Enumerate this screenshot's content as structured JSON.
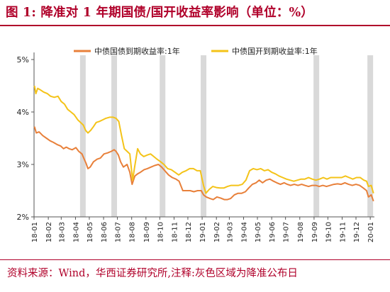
{
  "header": {
    "title": "图 1:  降准对 1 年期国债/国开收益率影响（单位：%）"
  },
  "footer": {
    "source": "资料来源：Wind，华西证券研究所,注释:灰色区域为降准公布日"
  },
  "chart_data": {
    "type": "line",
    "title": "",
    "xlabel": "",
    "ylabel": "",
    "ylim": [
      2,
      5
    ],
    "yticks": [
      "2%",
      "3%",
      "4%",
      "5%"
    ],
    "grid": false,
    "legend_position": "top-center",
    "colors": {
      "series1": "#e8803a",
      "series2": "#f4c318",
      "shade": "#d9d9d9"
    },
    "x_tick_labels": [
      "18-01",
      "18-02",
      "18-03",
      "18-04",
      "18-05",
      "18-06",
      "18-07",
      "18-08",
      "18-09",
      "18-10",
      "18-11",
      "18-12",
      "19-01",
      "19-02",
      "19-03",
      "19-04",
      "19-05",
      "19-06",
      "19-07",
      "19-08",
      "19-09",
      "19-10",
      "19-11",
      "19-12",
      "20-01"
    ],
    "shaded_dates": [
      "2018-04-17",
      "2018-06-24",
      "2018-10-07",
      "2019-01-04",
      "2019-09-06",
      "2020-01-01"
    ],
    "series": [
      {
        "name": "中债国债到期收益率:1年",
        "color": "#e8803a",
        "points": [
          [
            "2018-01-02",
            3.72
          ],
          [
            "2018-01-06",
            3.6
          ],
          [
            "2018-01-12",
            3.62
          ],
          [
            "2018-01-20",
            3.55
          ],
          [
            "2018-01-28",
            3.5
          ],
          [
            "2018-02-05",
            3.45
          ],
          [
            "2018-02-12",
            3.42
          ],
          [
            "2018-02-20",
            3.38
          ],
          [
            "2018-02-28",
            3.35
          ],
          [
            "2018-03-06",
            3.3
          ],
          [
            "2018-03-12",
            3.33
          ],
          [
            "2018-03-18",
            3.3
          ],
          [
            "2018-03-25",
            3.28
          ],
          [
            "2018-04-02",
            3.32
          ],
          [
            "2018-04-08",
            3.25
          ],
          [
            "2018-04-15",
            3.2
          ],
          [
            "2018-04-20",
            3.1
          ],
          [
            "2018-04-24",
            3.02
          ],
          [
            "2018-04-28",
            2.92
          ],
          [
            "2018-05-03",
            2.95
          ],
          [
            "2018-05-10",
            3.05
          ],
          [
            "2018-05-18",
            3.1
          ],
          [
            "2018-05-25",
            3.12
          ],
          [
            "2018-06-02",
            3.2
          ],
          [
            "2018-06-10",
            3.22
          ],
          [
            "2018-06-18",
            3.25
          ],
          [
            "2018-06-24",
            3.28
          ],
          [
            "2018-06-28",
            3.25
          ],
          [
            "2018-07-03",
            3.18
          ],
          [
            "2018-07-08",
            3.05
          ],
          [
            "2018-07-14",
            2.95
          ],
          [
            "2018-07-22",
            3.0
          ],
          [
            "2018-07-28",
            2.85
          ],
          [
            "2018-08-02",
            2.62
          ],
          [
            "2018-08-08",
            2.78
          ],
          [
            "2018-08-14",
            2.82
          ],
          [
            "2018-08-20",
            2.85
          ],
          [
            "2018-08-28",
            2.9
          ],
          [
            "2018-09-04",
            2.92
          ],
          [
            "2018-09-12",
            2.95
          ],
          [
            "2018-09-20",
            2.98
          ],
          [
            "2018-09-28",
            3.0
          ],
          [
            "2018-10-05",
            2.95
          ],
          [
            "2018-10-12",
            2.88
          ],
          [
            "2018-10-20",
            2.8
          ],
          [
            "2018-10-28",
            2.75
          ],
          [
            "2018-11-05",
            2.72
          ],
          [
            "2018-11-12",
            2.68
          ],
          [
            "2018-11-20",
            2.5
          ],
          [
            "2018-11-28",
            2.5
          ],
          [
            "2018-12-06",
            2.5
          ],
          [
            "2018-12-14",
            2.48
          ],
          [
            "2018-12-22",
            2.5
          ],
          [
            "2018-12-30",
            2.5
          ],
          [
            "2019-01-04",
            2.42
          ],
          [
            "2019-01-10",
            2.38
          ],
          [
            "2019-01-18",
            2.35
          ],
          [
            "2019-01-25",
            2.33
          ],
          [
            "2019-02-02",
            2.38
          ],
          [
            "2019-02-10",
            2.36
          ],
          [
            "2019-02-18",
            2.33
          ],
          [
            "2019-02-25",
            2.33
          ],
          [
            "2019-03-04",
            2.35
          ],
          [
            "2019-03-12",
            2.42
          ],
          [
            "2019-03-20",
            2.45
          ],
          [
            "2019-03-28",
            2.45
          ],
          [
            "2019-04-05",
            2.48
          ],
          [
            "2019-04-12",
            2.55
          ],
          [
            "2019-04-20",
            2.62
          ],
          [
            "2019-04-28",
            2.65
          ],
          [
            "2019-05-05",
            2.7
          ],
          [
            "2019-05-12",
            2.65
          ],
          [
            "2019-05-20",
            2.7
          ],
          [
            "2019-05-28",
            2.72
          ],
          [
            "2019-06-05",
            2.68
          ],
          [
            "2019-06-12",
            2.65
          ],
          [
            "2019-06-20",
            2.62
          ],
          [
            "2019-06-28",
            2.65
          ],
          [
            "2019-07-05",
            2.62
          ],
          [
            "2019-07-12",
            2.6
          ],
          [
            "2019-07-20",
            2.62
          ],
          [
            "2019-07-28",
            2.6
          ],
          [
            "2019-08-05",
            2.62
          ],
          [
            "2019-08-12",
            2.6
          ],
          [
            "2019-08-20",
            2.58
          ],
          [
            "2019-08-28",
            2.6
          ],
          [
            "2019-09-05",
            2.6
          ],
          [
            "2019-09-12",
            2.58
          ],
          [
            "2019-09-20",
            2.6
          ],
          [
            "2019-09-28",
            2.58
          ],
          [
            "2019-10-06",
            2.6
          ],
          [
            "2019-10-14",
            2.62
          ],
          [
            "2019-10-22",
            2.63
          ],
          [
            "2019-10-30",
            2.62
          ],
          [
            "2019-11-07",
            2.65
          ],
          [
            "2019-11-15",
            2.62
          ],
          [
            "2019-11-23",
            2.6
          ],
          [
            "2019-12-01",
            2.62
          ],
          [
            "2019-12-09",
            2.6
          ],
          [
            "2019-12-17",
            2.55
          ],
          [
            "2019-12-24",
            2.5
          ],
          [
            "2019-12-28",
            2.38
          ],
          [
            "2020-01-03",
            2.42
          ],
          [
            "2020-01-08",
            2.3
          ]
        ]
      },
      {
        "name": "中债国开到期收益率:1年",
        "color": "#f4c318",
        "points": [
          [
            "2018-01-02",
            4.5
          ],
          [
            "2018-01-05",
            4.35
          ],
          [
            "2018-01-09",
            4.45
          ],
          [
            "2018-01-15",
            4.42
          ],
          [
            "2018-01-22",
            4.38
          ],
          [
            "2018-01-30",
            4.35
          ],
          [
            "2018-02-06",
            4.3
          ],
          [
            "2018-02-14",
            4.28
          ],
          [
            "2018-02-22",
            4.3
          ],
          [
            "2018-03-01",
            4.2
          ],
          [
            "2018-03-08",
            4.15
          ],
          [
            "2018-03-15",
            4.05
          ],
          [
            "2018-03-22",
            4.0
          ],
          [
            "2018-03-29",
            3.95
          ],
          [
            "2018-04-06",
            3.85
          ],
          [
            "2018-04-12",
            3.8
          ],
          [
            "2018-04-18",
            3.75
          ],
          [
            "2018-04-23",
            3.65
          ],
          [
            "2018-04-28",
            3.6
          ],
          [
            "2018-05-04",
            3.65
          ],
          [
            "2018-05-10",
            3.72
          ],
          [
            "2018-05-16",
            3.8
          ],
          [
            "2018-05-23",
            3.82
          ],
          [
            "2018-05-30",
            3.85
          ],
          [
            "2018-06-06",
            3.88
          ],
          [
            "2018-06-14",
            3.9
          ],
          [
            "2018-06-22",
            3.9
          ],
          [
            "2018-06-28",
            3.88
          ],
          [
            "2018-07-04",
            3.82
          ],
          [
            "2018-07-10",
            3.55
          ],
          [
            "2018-07-16",
            3.3
          ],
          [
            "2018-07-22",
            3.25
          ],
          [
            "2018-07-28",
            3.2
          ],
          [
            "2018-08-03",
            2.7
          ],
          [
            "2018-08-08",
            2.98
          ],
          [
            "2018-08-14",
            3.3
          ],
          [
            "2018-08-20",
            3.2
          ],
          [
            "2018-08-27",
            3.15
          ],
          [
            "2018-09-04",
            3.18
          ],
          [
            "2018-09-11",
            3.2
          ],
          [
            "2018-09-18",
            3.15
          ],
          [
            "2018-09-25",
            3.1
          ],
          [
            "2018-10-03",
            3.05
          ],
          [
            "2018-10-10",
            3.0
          ],
          [
            "2018-10-18",
            2.92
          ],
          [
            "2018-10-26",
            2.9
          ],
          [
            "2018-11-03",
            2.85
          ],
          [
            "2018-11-11",
            2.8
          ],
          [
            "2018-11-19",
            2.85
          ],
          [
            "2018-11-27",
            2.88
          ],
          [
            "2018-12-05",
            2.92
          ],
          [
            "2018-12-13",
            2.92
          ],
          [
            "2018-12-21",
            2.88
          ],
          [
            "2018-12-28",
            2.88
          ],
          [
            "2019-01-04",
            2.6
          ],
          [
            "2019-01-09",
            2.45
          ],
          [
            "2019-01-16",
            2.52
          ],
          [
            "2019-01-24",
            2.58
          ],
          [
            "2019-02-01",
            2.56
          ],
          [
            "2019-02-09",
            2.55
          ],
          [
            "2019-02-17",
            2.55
          ],
          [
            "2019-02-25",
            2.58
          ],
          [
            "2019-03-05",
            2.6
          ],
          [
            "2019-03-13",
            2.6
          ],
          [
            "2019-03-21",
            2.6
          ],
          [
            "2019-03-29",
            2.62
          ],
          [
            "2019-04-06",
            2.7
          ],
          [
            "2019-04-14",
            2.88
          ],
          [
            "2019-04-22",
            2.92
          ],
          [
            "2019-04-30",
            2.9
          ],
          [
            "2019-05-08",
            2.92
          ],
          [
            "2019-05-16",
            2.88
          ],
          [
            "2019-05-24",
            2.9
          ],
          [
            "2019-06-01",
            2.85
          ],
          [
            "2019-06-09",
            2.82
          ],
          [
            "2019-06-17",
            2.78
          ],
          [
            "2019-06-25",
            2.75
          ],
          [
            "2019-07-03",
            2.72
          ],
          [
            "2019-07-11",
            2.7
          ],
          [
            "2019-07-19",
            2.68
          ],
          [
            "2019-07-27",
            2.7
          ],
          [
            "2019-08-04",
            2.72
          ],
          [
            "2019-08-12",
            2.72
          ],
          [
            "2019-08-20",
            2.75
          ],
          [
            "2019-08-28",
            2.72
          ],
          [
            "2019-09-05",
            2.7
          ],
          [
            "2019-09-13",
            2.72
          ],
          [
            "2019-09-21",
            2.75
          ],
          [
            "2019-09-29",
            2.72
          ],
          [
            "2019-10-07",
            2.75
          ],
          [
            "2019-10-15",
            2.75
          ],
          [
            "2019-10-23",
            2.75
          ],
          [
            "2019-10-31",
            2.75
          ],
          [
            "2019-11-08",
            2.78
          ],
          [
            "2019-11-16",
            2.75
          ],
          [
            "2019-11-24",
            2.72
          ],
          [
            "2019-12-02",
            2.75
          ],
          [
            "2019-12-10",
            2.75
          ],
          [
            "2019-12-18",
            2.7
          ],
          [
            "2019-12-24",
            2.68
          ],
          [
            "2019-12-28",
            2.58
          ],
          [
            "2020-01-03",
            2.6
          ],
          [
            "2020-01-08",
            2.45
          ]
        ]
      }
    ]
  }
}
